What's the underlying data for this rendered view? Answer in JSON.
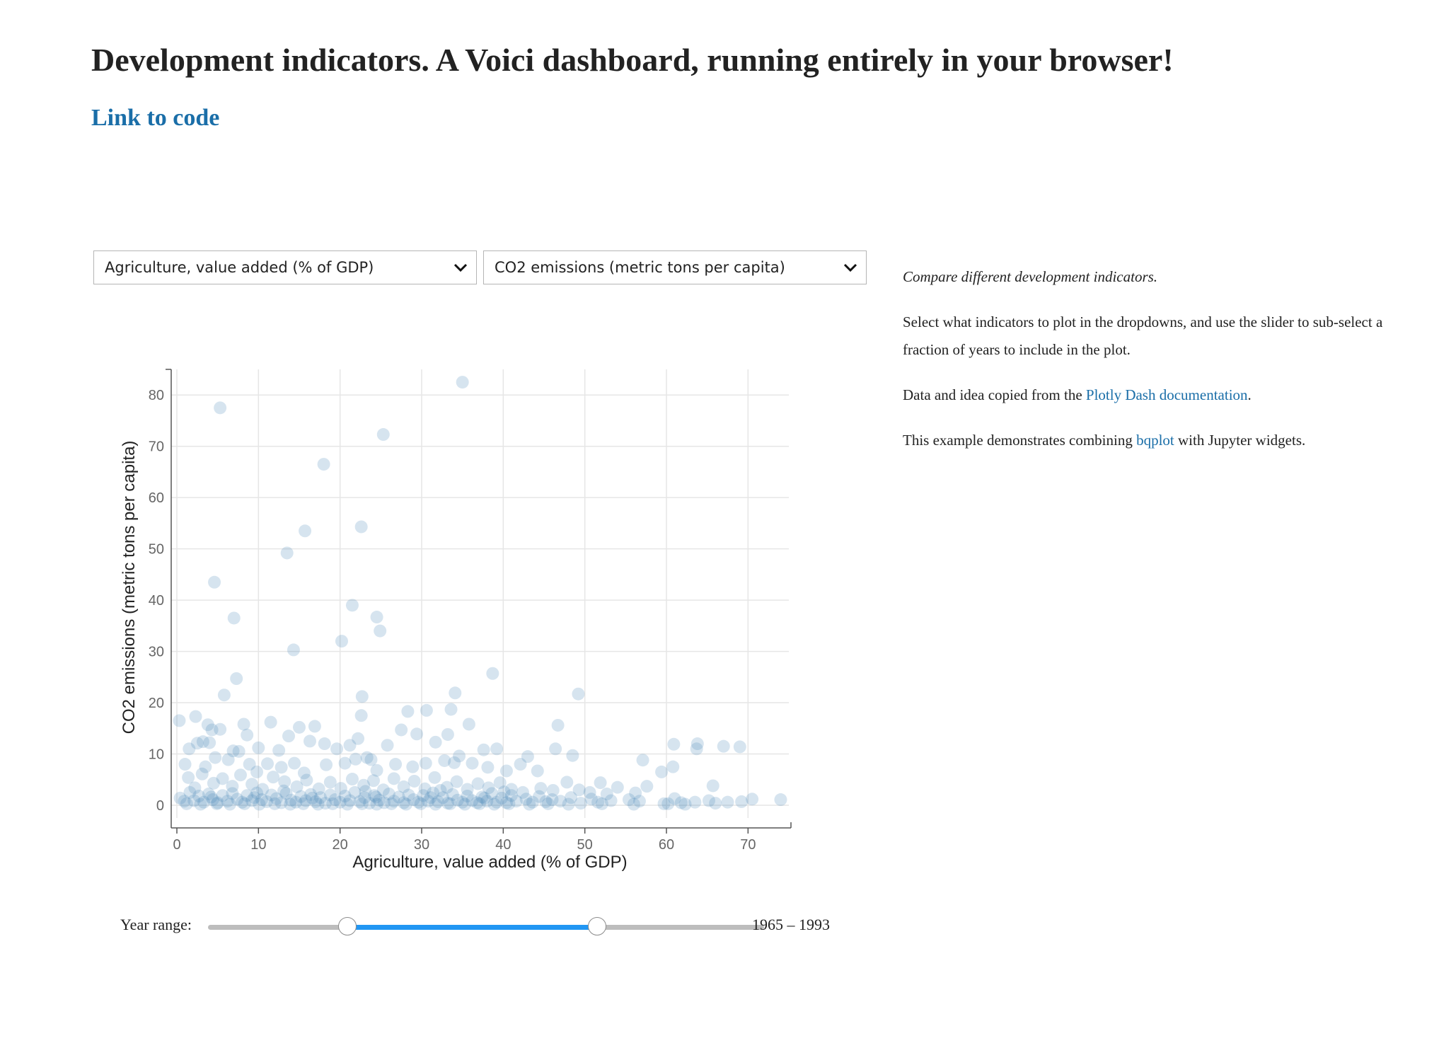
{
  "header": {
    "title": "Development indicators. A Voici dashboard, running entirely in your browser!",
    "code_link": "Link to code"
  },
  "dropdowns": {
    "x_indicator": "Agriculture, value added (% of GDP)",
    "y_indicator": "CO2 emissions (metric tons per capita)"
  },
  "chart_data": {
    "type": "scatter",
    "xlabel": "Agriculture, value added (% of GDP)",
    "ylabel": "CO2 emissions (metric tons per capita)",
    "xlim": [
      0,
      75
    ],
    "ylim": [
      0,
      85
    ],
    "xticks": [
      0,
      10,
      20,
      30,
      40,
      50,
      60,
      70
    ],
    "yticks": [
      0,
      10,
      20,
      30,
      40,
      50,
      60,
      70,
      80
    ],
    "grid": true,
    "color": "#4682b4",
    "points": [
      [
        35,
        82.5
      ],
      [
        5.3,
        77.5
      ],
      [
        25.3,
        72.3
      ],
      [
        18,
        66.5
      ],
      [
        22.6,
        54.3
      ],
      [
        15.7,
        53.5
      ],
      [
        13.5,
        49.2
      ],
      [
        4.6,
        43.5
      ],
      [
        21.5,
        39
      ],
      [
        24.5,
        36.7
      ],
      [
        7,
        36.5
      ],
      [
        24.9,
        34
      ],
      [
        20.2,
        32
      ],
      [
        14.3,
        30.3
      ],
      [
        38.7,
        25.7
      ],
      [
        7.3,
        24.7
      ],
      [
        34.1,
        21.9
      ],
      [
        49.2,
        21.7
      ],
      [
        5.8,
        21.5
      ],
      [
        22.7,
        21.2
      ],
      [
        0.3,
        16.5
      ],
      [
        2.3,
        17.3
      ],
      [
        22.6,
        17.5
      ],
      [
        28.3,
        18.3
      ],
      [
        30.6,
        18.5
      ],
      [
        33.6,
        18.7
      ],
      [
        3.8,
        15.7
      ],
      [
        4.3,
        14.7
      ],
      [
        5.3,
        14.8
      ],
      [
        8.2,
        15.8
      ],
      [
        11.5,
        16.2
      ],
      [
        15,
        15.2
      ],
      [
        16.9,
        15.4
      ],
      [
        27.5,
        14.7
      ],
      [
        29.4,
        13.9
      ],
      [
        35.8,
        15.8
      ],
      [
        46.7,
        15.6
      ],
      [
        1.5,
        11
      ],
      [
        2.5,
        12.1
      ],
      [
        3.2,
        12.4
      ],
      [
        4,
        12.2
      ],
      [
        6.9,
        10.6
      ],
      [
        7.6,
        10.5
      ],
      [
        8.6,
        13.7
      ],
      [
        10,
        11.2
      ],
      [
        12.5,
        10.7
      ],
      [
        13.7,
        13.5
      ],
      [
        16.3,
        12.5
      ],
      [
        18.1,
        12
      ],
      [
        19.6,
        11
      ],
      [
        21.2,
        11.7
      ],
      [
        22.2,
        13
      ],
      [
        23.3,
        9.3
      ],
      [
        25.8,
        11.7
      ],
      [
        31.7,
        12.3
      ],
      [
        33.2,
        13.8
      ],
      [
        34.6,
        9.6
      ],
      [
        37.6,
        10.8
      ],
      [
        39.2,
        11
      ],
      [
        43,
        9.5
      ],
      [
        46.4,
        11
      ],
      [
        48.5,
        9.7
      ],
      [
        57.1,
        8.8
      ],
      [
        60.9,
        11.9
      ],
      [
        63.8,
        12
      ],
      [
        63.7,
        11
      ],
      [
        67,
        11.5
      ],
      [
        69,
        11.4
      ],
      [
        1,
        8
      ],
      [
        3.5,
        7.5
      ],
      [
        4.7,
        9.3
      ],
      [
        6.3,
        8.9
      ],
      [
        8.9,
        8
      ],
      [
        9.8,
        6.5
      ],
      [
        11.1,
        8.1
      ],
      [
        12.8,
        7.4
      ],
      [
        14.4,
        8.2
      ],
      [
        15.6,
        6.3
      ],
      [
        18.3,
        7.9
      ],
      [
        20.6,
        8.2
      ],
      [
        21.9,
        9
      ],
      [
        23.8,
        8.9
      ],
      [
        24.5,
        6.8
      ],
      [
        26.8,
        8
      ],
      [
        28.9,
        7.5
      ],
      [
        30.5,
        8.2
      ],
      [
        32.8,
        8.7
      ],
      [
        34,
        8.3
      ],
      [
        36.2,
        8.2
      ],
      [
        38.1,
        7.4
      ],
      [
        40.4,
        6.7
      ],
      [
        42.1,
        8
      ],
      [
        44.2,
        6.7
      ],
      [
        47.8,
        4.5
      ],
      [
        51.9,
        4.4
      ],
      [
        54,
        3.5
      ],
      [
        57.6,
        3.7
      ],
      [
        59.4,
        6.5
      ],
      [
        60.8,
        7.5
      ],
      [
        65.7,
        3.8
      ],
      [
        1.4,
        5.4
      ],
      [
        2.2,
        3.4
      ],
      [
        3.1,
        6.1
      ],
      [
        4.5,
        4.3
      ],
      [
        5.6,
        5.2
      ],
      [
        6.8,
        3.7
      ],
      [
        7.8,
        5.9
      ],
      [
        9.2,
        4.1
      ],
      [
        10.5,
        3.1
      ],
      [
        11.8,
        5.5
      ],
      [
        13.2,
        4.6
      ],
      [
        14.7,
        3.6
      ],
      [
        15.9,
        4.9
      ],
      [
        17.4,
        3.2
      ],
      [
        18.8,
        4.5
      ],
      [
        20.1,
        3.3
      ],
      [
        21.5,
        5.1
      ],
      [
        22.9,
        3.9
      ],
      [
        24.1,
        4.8
      ],
      [
        25.3,
        3
      ],
      [
        26.6,
        5.2
      ],
      [
        27.8,
        3.6
      ],
      [
        29.1,
        4.7
      ],
      [
        30.4,
        3.2
      ],
      [
        31.6,
        5.4
      ],
      [
        33.1,
        3.5
      ],
      [
        34.3,
        4.6
      ],
      [
        35.6,
        3.1
      ],
      [
        36.9,
        4.2
      ],
      [
        38.2,
        3.4
      ],
      [
        39.6,
        4.4
      ],
      [
        41,
        3.1
      ],
      [
        42.4,
        2.5
      ],
      [
        44.6,
        3.3
      ],
      [
        46.1,
        2.9
      ],
      [
        49.3,
        3
      ],
      [
        50.6,
        2.5
      ],
      [
        52.7,
        2.2
      ],
      [
        56.2,
        2.4
      ],
      [
        0.4,
        1.4
      ],
      [
        0.9,
        0.8
      ],
      [
        1.6,
        2.5
      ],
      [
        2.1,
        0.9
      ],
      [
        2.7,
        1.8
      ],
      [
        3.3,
        0.6
      ],
      [
        3.9,
        2.2
      ],
      [
        4.4,
        1.1
      ],
      [
        5,
        0.5
      ],
      [
        5.6,
        1.9
      ],
      [
        6.2,
        0.8
      ],
      [
        6.8,
        2.3
      ],
      [
        7.4,
        1.2
      ],
      [
        8,
        0.6
      ],
      [
        8.6,
        1.9
      ],
      [
        9.2,
        0.9
      ],
      [
        9.8,
        2.4
      ],
      [
        10.4,
        1.1
      ],
      [
        11,
        0.7
      ],
      [
        11.6,
        2
      ],
      [
        12.2,
        1.3
      ],
      [
        12.8,
        0.5
      ],
      [
        13.4,
        2.3
      ],
      [
        14,
        1
      ],
      [
        14.6,
        0.6
      ],
      [
        15.2,
        1.7
      ],
      [
        15.8,
        0.9
      ],
      [
        16.4,
        2.1
      ],
      [
        17,
        0.7
      ],
      [
        17.6,
        1.5
      ],
      [
        18.2,
        0.4
      ],
      [
        18.8,
        2
      ],
      [
        19.4,
        1.1
      ],
      [
        20,
        0.6
      ],
      [
        20.6,
        1.8
      ],
      [
        21.2,
        0.9
      ],
      [
        21.8,
        2.5
      ],
      [
        22.4,
        0.7
      ],
      [
        23,
        1.5
      ],
      [
        23.6,
        0.4
      ],
      [
        24.2,
        1.9
      ],
      [
        24.8,
        1
      ],
      [
        25.4,
        0.5
      ],
      [
        26,
        2.2
      ],
      [
        26.6,
        0.8
      ],
      [
        27.2,
        1.6
      ],
      [
        27.8,
        0.5
      ],
      [
        28.4,
        2
      ],
      [
        29,
        1.1
      ],
      [
        29.6,
        0.6
      ],
      [
        30.2,
        1.9
      ],
      [
        30.8,
        0.8
      ],
      [
        31.4,
        2.4
      ],
      [
        32,
        0.7
      ],
      [
        32.6,
        1.5
      ],
      [
        33.2,
        0.4
      ],
      [
        33.8,
        2.1
      ],
      [
        34.4,
        1
      ],
      [
        35,
        0.6
      ],
      [
        35.6,
        1.8
      ],
      [
        36.2,
        0.9
      ],
      [
        36.8,
        0.5
      ],
      [
        37.4,
        1.6
      ],
      [
        38,
        0.8
      ],
      [
        38.6,
        2.3
      ],
      [
        39.2,
        0.6
      ],
      [
        39.8,
        1.4
      ],
      [
        40.4,
        0.5
      ],
      [
        41,
        1.9
      ],
      [
        41.6,
        0.8
      ],
      [
        42.8,
        1.2
      ],
      [
        43.6,
        0.6
      ],
      [
        44.4,
        1.7
      ],
      [
        45.2,
        0.7
      ],
      [
        46,
        1.1
      ],
      [
        47,
        0.8
      ],
      [
        48.3,
        1.5
      ],
      [
        49.5,
        0.4
      ],
      [
        50.8,
        1.2
      ],
      [
        51.6,
        0.6
      ],
      [
        53.2,
        0.9
      ],
      [
        55.4,
        1.1
      ],
      [
        56.7,
        0.8
      ],
      [
        59.7,
        0.3
      ],
      [
        61,
        1.3
      ],
      [
        61.8,
        0.5
      ],
      [
        63.5,
        0.6
      ],
      [
        65.2,
        0.9
      ],
      [
        66,
        0.4
      ],
      [
        67.5,
        0.6
      ],
      [
        69.2,
        0.7
      ],
      [
        70.5,
        1.2
      ],
      [
        74,
        1.1
      ],
      [
        1.2,
        0.3
      ],
      [
        2.9,
        0.2
      ],
      [
        4.9,
        0.3
      ],
      [
        6.5,
        0.2
      ],
      [
        8.3,
        0.3
      ],
      [
        10.1,
        0.2
      ],
      [
        12,
        0.3
      ],
      [
        13.9,
        0.2
      ],
      [
        15.5,
        0.3
      ],
      [
        17.3,
        0.2
      ],
      [
        19.1,
        0.3
      ],
      [
        20.9,
        0.2
      ],
      [
        22.7,
        0.3
      ],
      [
        24.5,
        0.2
      ],
      [
        26.3,
        0.3
      ],
      [
        28.1,
        0.2
      ],
      [
        29.9,
        0.3
      ],
      [
        31.7,
        0.2
      ],
      [
        33.5,
        0.3
      ],
      [
        35.3,
        0.2
      ],
      [
        37.1,
        0.3
      ],
      [
        38.9,
        0.2
      ],
      [
        40.7,
        0.3
      ],
      [
        43.2,
        0.2
      ],
      [
        45.5,
        0.3
      ],
      [
        48,
        0.2
      ],
      [
        52.1,
        0.3
      ],
      [
        56,
        0.2
      ],
      [
        60.2,
        0.3
      ],
      [
        62.3,
        0.2
      ],
      [
        4.2,
        1.6
      ],
      [
        9.5,
        1.5
      ],
      [
        16.6,
        1.4
      ],
      [
        24.4,
        1.6
      ],
      [
        31.1,
        1.5
      ],
      [
        37.7,
        1.4
      ],
      [
        13.1,
        2.8
      ],
      [
        23.1,
        2.7
      ],
      [
        32.3,
        2.9
      ],
      [
        40.1,
        2.6
      ]
    ]
  },
  "slider": {
    "label": "Year range:",
    "value_text": "1965 – 1993",
    "low_fraction": 0.25,
    "high_fraction": 0.7
  },
  "sidebar": {
    "intro": "Compare different development indicators.",
    "instructions": "Select what indicators to plot in the dropdowns, and use the slider to sub-select a fraction of years to include in the plot.",
    "data_prefix": "Data and idea copied from the ",
    "data_link": "Plotly Dash documentation",
    "data_suffix": ".",
    "example_prefix": "This example demonstrates combining ",
    "example_link": "bqplot",
    "example_suffix": " with Jupyter widgets."
  }
}
